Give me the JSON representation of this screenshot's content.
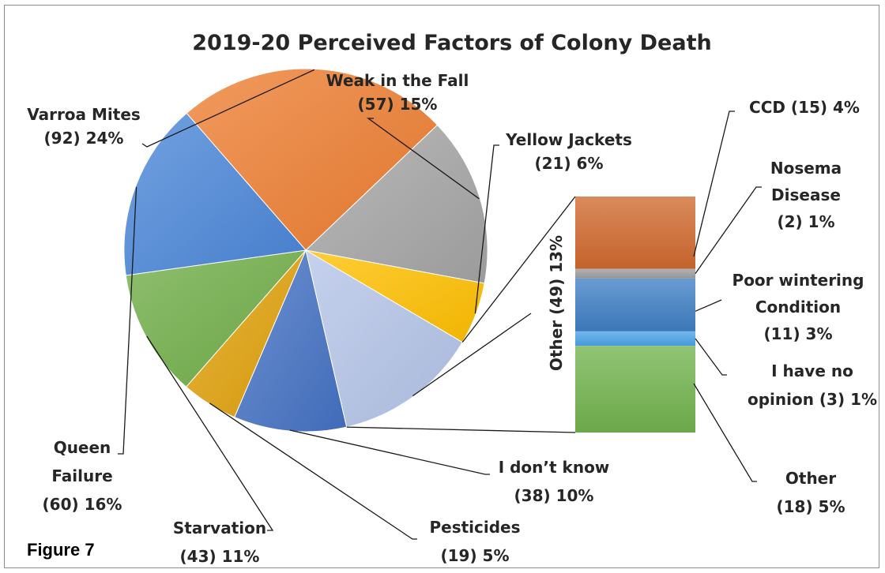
{
  "chart_data": {
    "type": "pie",
    "title": "2019-20 Perceived Factors of Colony Death",
    "slices": [
      {
        "key": "varroa",
        "label_lines": [
          "Varroa Mites",
          "(92) 24%"
        ],
        "count": 92,
        "percent": 24,
        "color": "#ed7d31"
      },
      {
        "key": "weak",
        "label_lines": [
          "Weak in the Fall",
          "(57) 15%"
        ],
        "count": 57,
        "percent": 15,
        "color": "#a5a5a5"
      },
      {
        "key": "yellow",
        "label_lines": [
          "Yellow Jackets",
          "(21) 6%"
        ],
        "count": 21,
        "percent": 6,
        "color": "#ffc000"
      },
      {
        "key": "other",
        "label_lines": [
          "Other (49) 13%"
        ],
        "count": 49,
        "percent": 13,
        "color": "#b4c4e8"
      },
      {
        "key": "idk",
        "label_lines": [
          "I don’t know",
          "(38) 10%"
        ],
        "count": 38,
        "percent": 10,
        "color": "#4472c4"
      },
      {
        "key": "pesticides",
        "label_lines": [
          "Pesticides",
          "(19) 5%"
        ],
        "count": 19,
        "percent": 5,
        "color": "#e0a10a"
      },
      {
        "key": "starvation",
        "label_lines": [
          "Starvation",
          "(43) 11%"
        ],
        "count": 43,
        "percent": 11,
        "color": "#70ad47"
      },
      {
        "key": "queen",
        "label_lines": [
          "Queen",
          "Failure",
          "(60) 16%"
        ],
        "count": 60,
        "percent": 16,
        "color": "#4a86d8"
      }
    ],
    "breakdown": {
      "of": "Other (49) 13%",
      "segments": [
        {
          "key": "ccd",
          "label_lines": [
            "CCD (15) 4%"
          ],
          "count": 15,
          "percent": 4,
          "color": "#d0692e"
        },
        {
          "key": "nosema",
          "label_lines": [
            "Nosema",
            "Disease",
            "(2) 1%"
          ],
          "count": 2,
          "percent": 1,
          "color": "#9e9e9e"
        },
        {
          "key": "poor",
          "label_lines": [
            "Poor wintering",
            "Condition",
            "(11) 3%"
          ],
          "count": 11,
          "percent": 3,
          "color": "#3f7fc4"
        },
        {
          "key": "noopinion",
          "label_lines": [
            "I have no",
            "opinion (3) 1%"
          ],
          "count": 3,
          "percent": 1,
          "color": "#4aa3e8"
        },
        {
          "key": "other2",
          "label_lines": [
            "Other",
            "(18) 5%"
          ],
          "count": 18,
          "percent": 5,
          "color": "#72b34e"
        }
      ]
    },
    "caption": "Figure 7"
  }
}
